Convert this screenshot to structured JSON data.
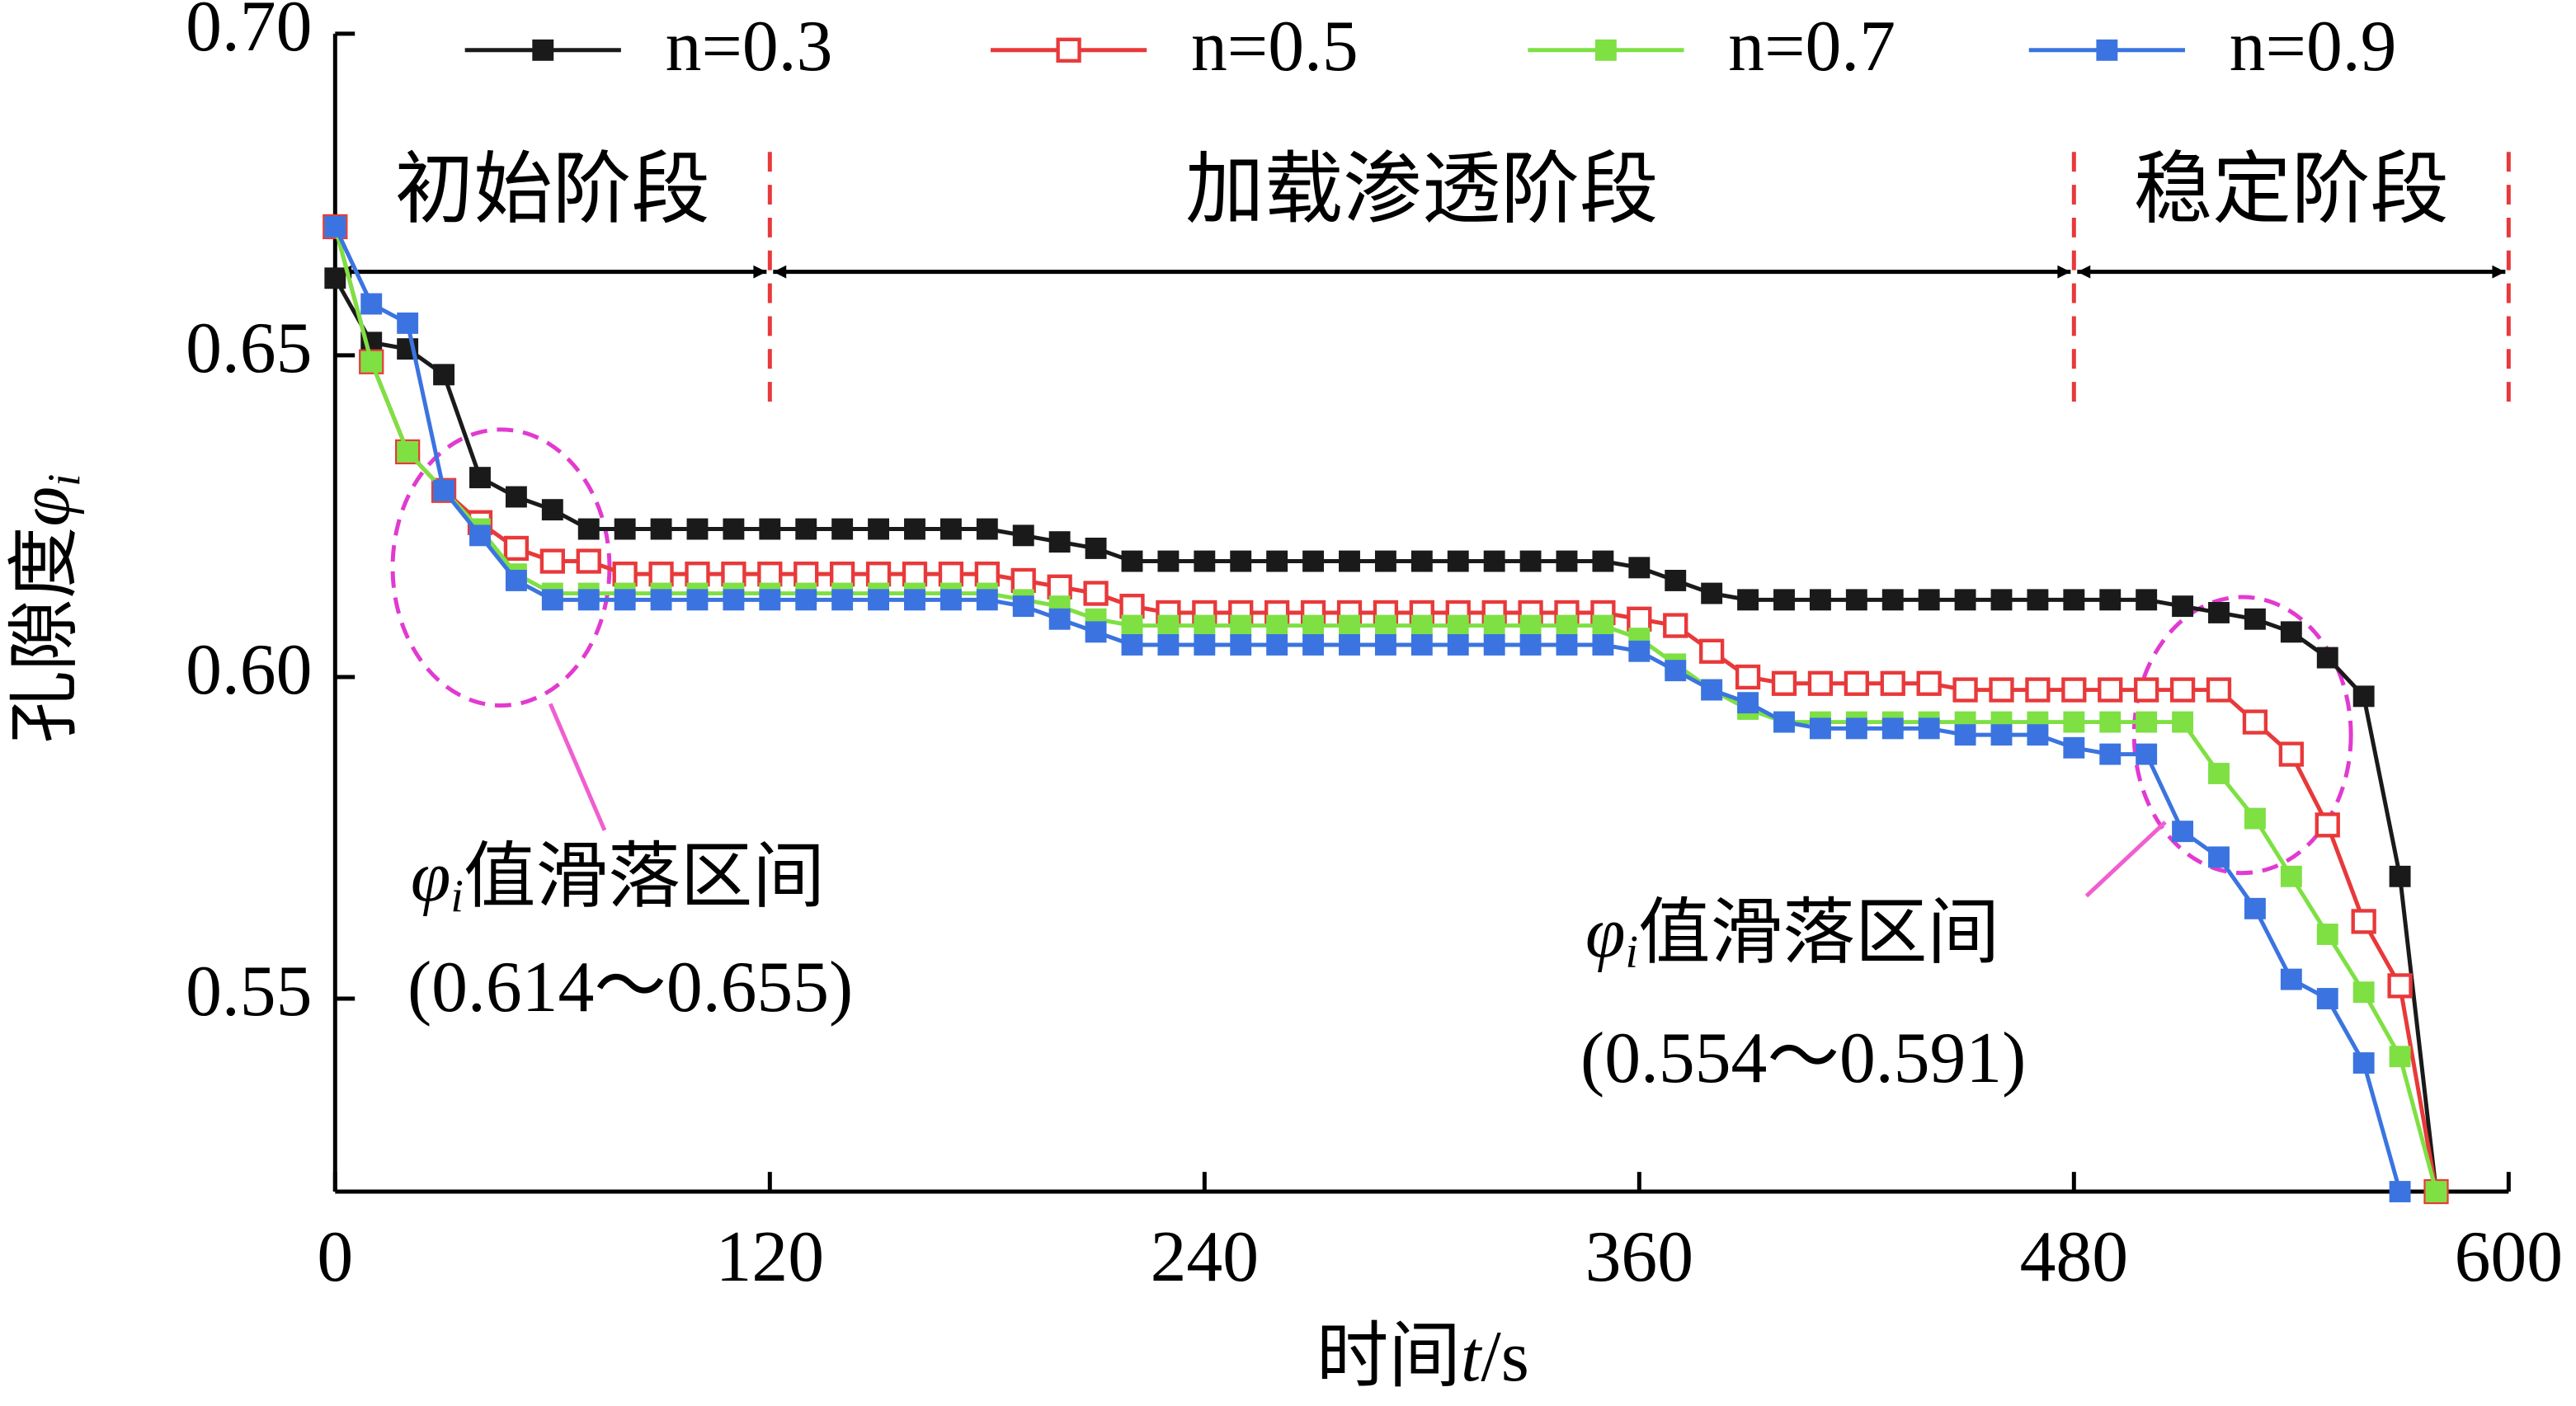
{
  "chart_data": {
    "type": "line",
    "xlabel": {
      "text": "时间",
      "symbol": "t",
      "unit": "/s"
    },
    "ylabel": {
      "text": "孔隙度",
      "symbol": "φ",
      "subscript": "i"
    },
    "x": [
      0,
      10,
      20,
      30,
      40,
      50,
      60,
      70,
      80,
      90,
      100,
      110,
      120,
      130,
      140,
      150,
      160,
      170,
      180,
      190,
      200,
      210,
      220,
      230,
      240,
      250,
      260,
      270,
      280,
      290,
      300,
      310,
      320,
      330,
      340,
      350,
      360,
      370,
      380,
      390,
      400,
      410,
      420,
      430,
      440,
      450,
      460,
      470,
      480,
      490,
      500,
      510,
      520,
      530,
      540,
      550,
      560,
      570,
      580
    ],
    "xlim": [
      0,
      600
    ],
    "xticks": [
      0,
      120,
      240,
      360,
      480,
      600
    ],
    "ylim": [
      0.52,
      0.7
    ],
    "yticks": [
      {
        "value": 0.7,
        "label": "0.70"
      },
      0.65,
      {
        "value": 0.6,
        "label": "0.60"
      },
      0.55
    ],
    "series": [
      {
        "name": "n=0.3",
        "color": "#1a1a1a",
        "marker": "filled",
        "values": [
          0.662,
          0.652,
          0.651,
          0.647,
          0.631,
          0.628,
          0.626,
          0.623,
          0.623,
          0.623,
          0.623,
          0.623,
          0.623,
          0.623,
          0.623,
          0.623,
          0.623,
          0.623,
          0.623,
          0.622,
          0.621,
          0.62,
          0.618,
          0.618,
          0.618,
          0.618,
          0.618,
          0.618,
          0.618,
          0.618,
          0.618,
          0.618,
          0.618,
          0.618,
          0.618,
          0.618,
          0.617,
          0.615,
          0.613,
          0.612,
          0.612,
          0.612,
          0.612,
          0.612,
          0.612,
          0.612,
          0.612,
          0.612,
          0.612,
          0.612,
          0.612,
          0.611,
          0.61,
          0.609,
          0.607,
          0.603,
          0.597,
          0.569,
          0.52
        ]
      },
      {
        "name": "n=0.5",
        "color": "#e8393a",
        "marker": "hollow",
        "values": [
          0.67,
          0.649,
          0.635,
          0.629,
          0.624,
          0.62,
          0.618,
          0.618,
          0.616,
          0.616,
          0.616,
          0.616,
          0.616,
          0.616,
          0.616,
          0.616,
          0.616,
          0.616,
          0.616,
          0.615,
          0.614,
          0.613,
          0.611,
          0.61,
          0.61,
          0.61,
          0.61,
          0.61,
          0.61,
          0.61,
          0.61,
          0.61,
          0.61,
          0.61,
          0.61,
          0.61,
          0.609,
          0.608,
          0.604,
          0.6,
          0.599,
          0.599,
          0.599,
          0.599,
          0.599,
          0.598,
          0.598,
          0.598,
          0.598,
          0.598,
          0.598,
          0.598,
          0.598,
          0.593,
          0.588,
          0.577,
          0.562,
          0.552,
          0.52
        ]
      },
      {
        "name": "n=0.7",
        "color": "#7ee043",
        "marker": "filled",
        "values": [
          0.67,
          0.649,
          0.635,
          0.629,
          0.623,
          0.616,
          0.613,
          0.613,
          0.613,
          0.613,
          0.613,
          0.613,
          0.613,
          0.613,
          0.613,
          0.613,
          0.613,
          0.613,
          0.613,
          0.612,
          0.611,
          0.609,
          0.608,
          0.608,
          0.608,
          0.608,
          0.608,
          0.608,
          0.608,
          0.608,
          0.608,
          0.608,
          0.608,
          0.608,
          0.608,
          0.608,
          0.606,
          0.602,
          0.598,
          0.595,
          0.593,
          0.593,
          0.593,
          0.593,
          0.593,
          0.593,
          0.593,
          0.593,
          0.593,
          0.593,
          0.593,
          0.593,
          0.585,
          0.578,
          0.569,
          0.56,
          0.551,
          0.541,
          0.52
        ]
      },
      {
        "name": "n=0.9",
        "color": "#3b74e0",
        "marker": "filled",
        "values": [
          0.67,
          0.658,
          0.655,
          0.629,
          0.622,
          0.615,
          0.612,
          0.612,
          0.612,
          0.612,
          0.612,
          0.612,
          0.612,
          0.612,
          0.612,
          0.612,
          0.612,
          0.612,
          0.612,
          0.611,
          0.609,
          0.607,
          0.605,
          0.605,
          0.605,
          0.605,
          0.605,
          0.605,
          0.605,
          0.605,
          0.605,
          0.605,
          0.605,
          0.605,
          0.605,
          0.605,
          0.604,
          0.601,
          0.598,
          0.596,
          0.593,
          0.592,
          0.592,
          0.592,
          0.592,
          0.591,
          0.591,
          0.591,
          0.589,
          0.588,
          0.588,
          0.576,
          0.572,
          0.564,
          0.553,
          0.55,
          0.54,
          0.52,
          null
        ]
      }
    ],
    "stages": [
      {
        "label": "初始阶段",
        "start": 0,
        "end": 120
      },
      {
        "label": "加载渗透阶段",
        "start": 120,
        "end": 480
      },
      {
        "label": "稳定阶段",
        "start": 480,
        "end": 600
      }
    ],
    "annotations": [
      {
        "symbol": "φ",
        "subscript": "i",
        "text": "值滑落区间",
        "range": "(0.614～0.655)"
      },
      {
        "symbol": "φ",
        "subscript": "i",
        "text": "值滑落区间",
        "range": "(0.554～0.591)"
      }
    ]
  }
}
